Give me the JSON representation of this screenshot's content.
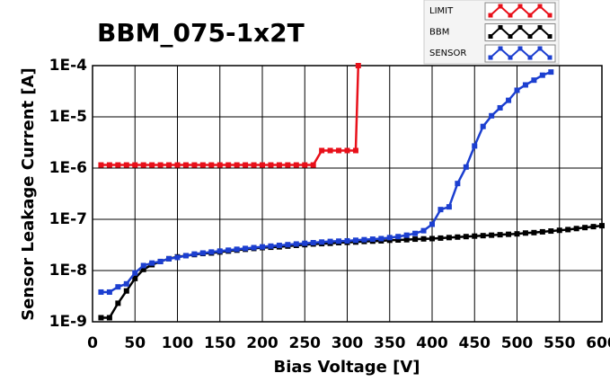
{
  "chart_data": {
    "type": "line",
    "title": "BBM_075-1x2T",
    "x_label": "Bias Voltage [V]",
    "y_label": "Sensor Leakage Current [A]",
    "xlim": [
      0,
      600
    ],
    "xticks": [
      0,
      50,
      100,
      150,
      200,
      250,
      300,
      350,
      400,
      450,
      500,
      550,
      600
    ],
    "ylim": [
      1e-09,
      0.0001
    ],
    "ylog": true,
    "yticks": [
      {
        "value": 1e-09,
        "label": "1E-9"
      },
      {
        "value": 1e-08,
        "label": "1E-8"
      },
      {
        "value": 1e-07,
        "label": "1E-7"
      },
      {
        "value": 1e-06,
        "label": "1E-6"
      },
      {
        "value": 1e-05,
        "label": "1E-5"
      },
      {
        "value": 0.0001,
        "label": "1E-4"
      }
    ],
    "grid": true,
    "legend": "top-right",
    "series": [
      {
        "name": "LIMIT",
        "color": "#e8101a",
        "x": [
          10,
          20,
          30,
          40,
          50,
          60,
          70,
          80,
          90,
          100,
          110,
          120,
          130,
          140,
          150,
          160,
          170,
          180,
          190,
          200,
          210,
          220,
          230,
          240,
          250,
          260,
          270,
          280,
          290,
          300,
          310,
          313
        ],
        "values": [
          1.15e-06,
          1.15e-06,
          1.15e-06,
          1.15e-06,
          1.15e-06,
          1.15e-06,
          1.15e-06,
          1.15e-06,
          1.15e-06,
          1.15e-06,
          1.15e-06,
          1.15e-06,
          1.15e-06,
          1.15e-06,
          1.15e-06,
          1.15e-06,
          1.15e-06,
          1.15e-06,
          1.15e-06,
          1.15e-06,
          1.15e-06,
          1.15e-06,
          1.15e-06,
          1.15e-06,
          1.15e-06,
          1.15e-06,
          2.2e-06,
          2.2e-06,
          2.2e-06,
          2.2e-06,
          2.2e-06,
          0.0001
        ]
      },
      {
        "name": "BBM",
        "color": "#000000",
        "x": [
          10,
          20,
          30,
          40,
          50,
          60,
          70,
          80,
          90,
          100,
          110,
          120,
          130,
          140,
          150,
          160,
          170,
          180,
          190,
          200,
          210,
          220,
          230,
          240,
          250,
          260,
          270,
          280,
          290,
          300,
          310,
          320,
          330,
          340,
          350,
          360,
          370,
          380,
          390,
          400,
          410,
          420,
          430,
          440,
          450,
          460,
          470,
          480,
          490,
          500,
          510,
          520,
          530,
          540,
          550,
          560,
          570,
          580,
          590,
          600
        ],
        "values": [
          1.2e-09,
          1.2e-09,
          2.3e-09,
          4e-09,
          7e-09,
          1.05e-08,
          1.3e-08,
          1.5e-08,
          1.7e-08,
          1.85e-08,
          1.95e-08,
          2.05e-08,
          2.15e-08,
          2.2e-08,
          2.3e-08,
          2.4e-08,
          2.5e-08,
          2.6e-08,
          2.7e-08,
          2.8e-08,
          2.85e-08,
          2.9e-08,
          3e-08,
          3.1e-08,
          3.2e-08,
          3.3e-08,
          3.35e-08,
          3.4e-08,
          3.5e-08,
          3.55e-08,
          3.6e-08,
          3.7e-08,
          3.75e-08,
          3.8e-08,
          3.9e-08,
          3.95e-08,
          4e-08,
          4.1e-08,
          4.15e-08,
          4.2e-08,
          4.3e-08,
          4.4e-08,
          4.5e-08,
          4.6e-08,
          4.7e-08,
          4.8e-08,
          4.9e-08,
          5e-08,
          5.1e-08,
          5.2e-08,
          5.4e-08,
          5.5e-08,
          5.7e-08,
          5.9e-08,
          6.1e-08,
          6.3e-08,
          6.6e-08,
          6.9e-08,
          7.2e-08,
          7.5e-08
        ]
      },
      {
        "name": "SENSOR",
        "color": "#1c3fd0",
        "x": [
          10,
          20,
          30,
          40,
          50,
          60,
          70,
          80,
          90,
          100,
          110,
          120,
          130,
          140,
          150,
          160,
          170,
          180,
          190,
          200,
          210,
          220,
          230,
          240,
          250,
          260,
          270,
          280,
          290,
          300,
          310,
          320,
          330,
          340,
          350,
          360,
          370,
          380,
          390,
          400,
          410,
          420,
          430,
          440,
          450,
          460,
          470,
          480,
          490,
          500,
          510,
          520,
          530,
          540
        ],
        "values": [
          3.8e-09,
          3.8e-09,
          4.8e-09,
          5.5e-09,
          9e-09,
          1.25e-08,
          1.4e-08,
          1.5e-08,
          1.7e-08,
          1.8e-08,
          1.95e-08,
          2.1e-08,
          2.2e-08,
          2.3e-08,
          2.4e-08,
          2.5e-08,
          2.6e-08,
          2.7e-08,
          2.8e-08,
          2.9e-08,
          3e-08,
          3.1e-08,
          3.2e-08,
          3.3e-08,
          3.4e-08,
          3.5e-08,
          3.6e-08,
          3.7e-08,
          3.75e-08,
          3.8e-08,
          3.9e-08,
          4e-08,
          4.1e-08,
          4.2e-08,
          4.4e-08,
          4.6e-08,
          4.9e-08,
          5.3e-08,
          6e-08,
          8e-08,
          1.55e-07,
          1.75e-07,
          5e-07,
          1.05e-06,
          2.7e-06,
          6.5e-06,
          1.05e-05,
          1.5e-05,
          2.1e-05,
          3.3e-05,
          4.2e-05,
          5.2e-05,
          6.5e-05,
          7.5e-05
        ]
      }
    ]
  }
}
